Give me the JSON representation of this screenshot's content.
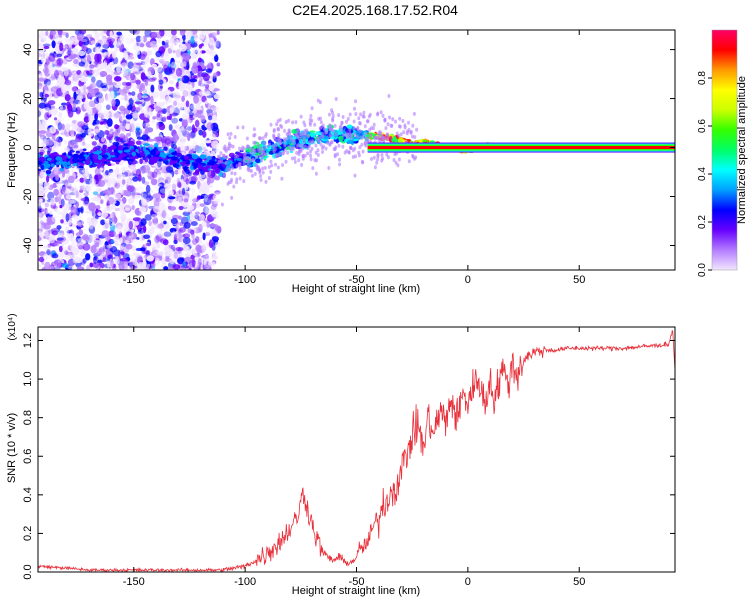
{
  "title": "C2E4.2025.168.17.52.R04",
  "chart_data": [
    {
      "type": "heatmap",
      "name": "spectrogram",
      "xlabel": "Height of straight line (km)",
      "ylabel": "Frequency (Hz)",
      "xlim": [
        -193,
        93
      ],
      "ylim": [
        -50,
        48
      ],
      "xticks": [
        -150,
        -100,
        -50,
        0,
        50
      ],
      "yticks": [
        -40,
        -20,
        0,
        20,
        40
      ],
      "colorbar": {
        "label": "Normalized spectral amplitude",
        "range": [
          0,
          1
        ],
        "ticks": [
          0.0,
          0.2,
          0.4,
          0.6,
          0.8
        ],
        "colors": [
          "#f2e6ff",
          "#b37cff",
          "#6600ff",
          "#0000ff",
          "#00a0ff",
          "#00ffff",
          "#00ff66",
          "#33ff00",
          "#ccff00",
          "#ffff00",
          "#ff9900",
          "#ff0000",
          "#ff0066"
        ]
      },
      "ridge": [
        {
          "x": -193,
          "y": -6
        },
        {
          "x": -180,
          "y": -5
        },
        {
          "x": -170,
          "y": -4
        },
        {
          "x": -160,
          "y": -3
        },
        {
          "x": -150,
          "y": -2
        },
        {
          "x": -140,
          "y": -3
        },
        {
          "x": -130,
          "y": -5
        },
        {
          "x": -120,
          "y": -7
        },
        {
          "x": -110,
          "y": -7
        },
        {
          "x": -100,
          "y": -4
        },
        {
          "x": -90,
          "y": -2
        },
        {
          "x": -80,
          "y": 2
        },
        {
          "x": -70,
          "y": 4
        },
        {
          "x": -60,
          "y": 5
        },
        {
          "x": -50,
          "y": 5
        },
        {
          "x": -45,
          "y": 5
        },
        {
          "x": -35,
          "y": 4
        },
        {
          "x": -30,
          "y": 3
        },
        {
          "x": -25,
          "y": 1
        },
        {
          "x": -20,
          "y": 2
        },
        {
          "x": -15,
          "y": 1
        },
        {
          "x": -10,
          "y": 0
        },
        {
          "x": -5,
          "y": 0
        },
        {
          "x": 0,
          "y": -1
        },
        {
          "x": 5,
          "y": 0
        },
        {
          "x": 10,
          "y": 0
        },
        {
          "x": 93,
          "y": 0
        }
      ],
      "stable_line": {
        "x_start": -45,
        "x_end": 93,
        "y": 0
      }
    },
    {
      "type": "line",
      "name": "snr",
      "xlabel": "Height of straight line (km)",
      "ylabel": "SNR (10 * v/v)",
      "multiplier": "(x10⁴)",
      "xlim": [
        -193,
        93
      ],
      "ylim": [
        0,
        1.27
      ],
      "xticks": [
        -150,
        -100,
        -50,
        0,
        50
      ],
      "yticks": [
        0.0,
        0.2,
        0.4,
        0.6,
        0.8,
        1.0,
        1.2
      ],
      "color": "#e8303a",
      "x": [
        -193,
        -180,
        -170,
        -160,
        -150,
        -140,
        -130,
        -120,
        -110,
        -105,
        -100,
        -95,
        -90,
        -85,
        -80,
        -76,
        -74,
        -72,
        -70,
        -68,
        -65,
        -62,
        -60,
        -58,
        -55,
        -52,
        -50,
        -48,
        -45,
        -42,
        -40,
        -38,
        -35,
        -32,
        -30,
        -28,
        -25,
        -22,
        -20,
        -18,
        -15,
        -12,
        -10,
        -8,
        -5,
        -2,
        0,
        2,
        5,
        8,
        10,
        12,
        15,
        18,
        20,
        22,
        25,
        28,
        30,
        35,
        40,
        45,
        50,
        60,
        70,
        80,
        90,
        92,
        93
      ],
      "y": [
        0.03,
        0.02,
        0.01,
        0.01,
        0.01,
        0.01,
        0.01,
        0.01,
        0.01,
        0.02,
        0.03,
        0.06,
        0.1,
        0.15,
        0.22,
        0.3,
        0.42,
        0.33,
        0.25,
        0.18,
        0.1,
        0.07,
        0.06,
        0.08,
        0.05,
        0.05,
        0.08,
        0.12,
        0.15,
        0.25,
        0.28,
        0.35,
        0.4,
        0.45,
        0.52,
        0.6,
        0.7,
        0.78,
        0.62,
        0.8,
        0.72,
        0.85,
        0.75,
        0.9,
        0.8,
        0.92,
        0.88,
        0.95,
        1.0,
        0.85,
        1.02,
        0.88,
        1.05,
        0.98,
        1.08,
        1.02,
        1.1,
        1.13,
        1.14,
        1.15,
        1.15,
        1.16,
        1.16,
        1.16,
        1.16,
        1.17,
        1.18,
        1.25,
        1.05
      ]
    }
  ]
}
